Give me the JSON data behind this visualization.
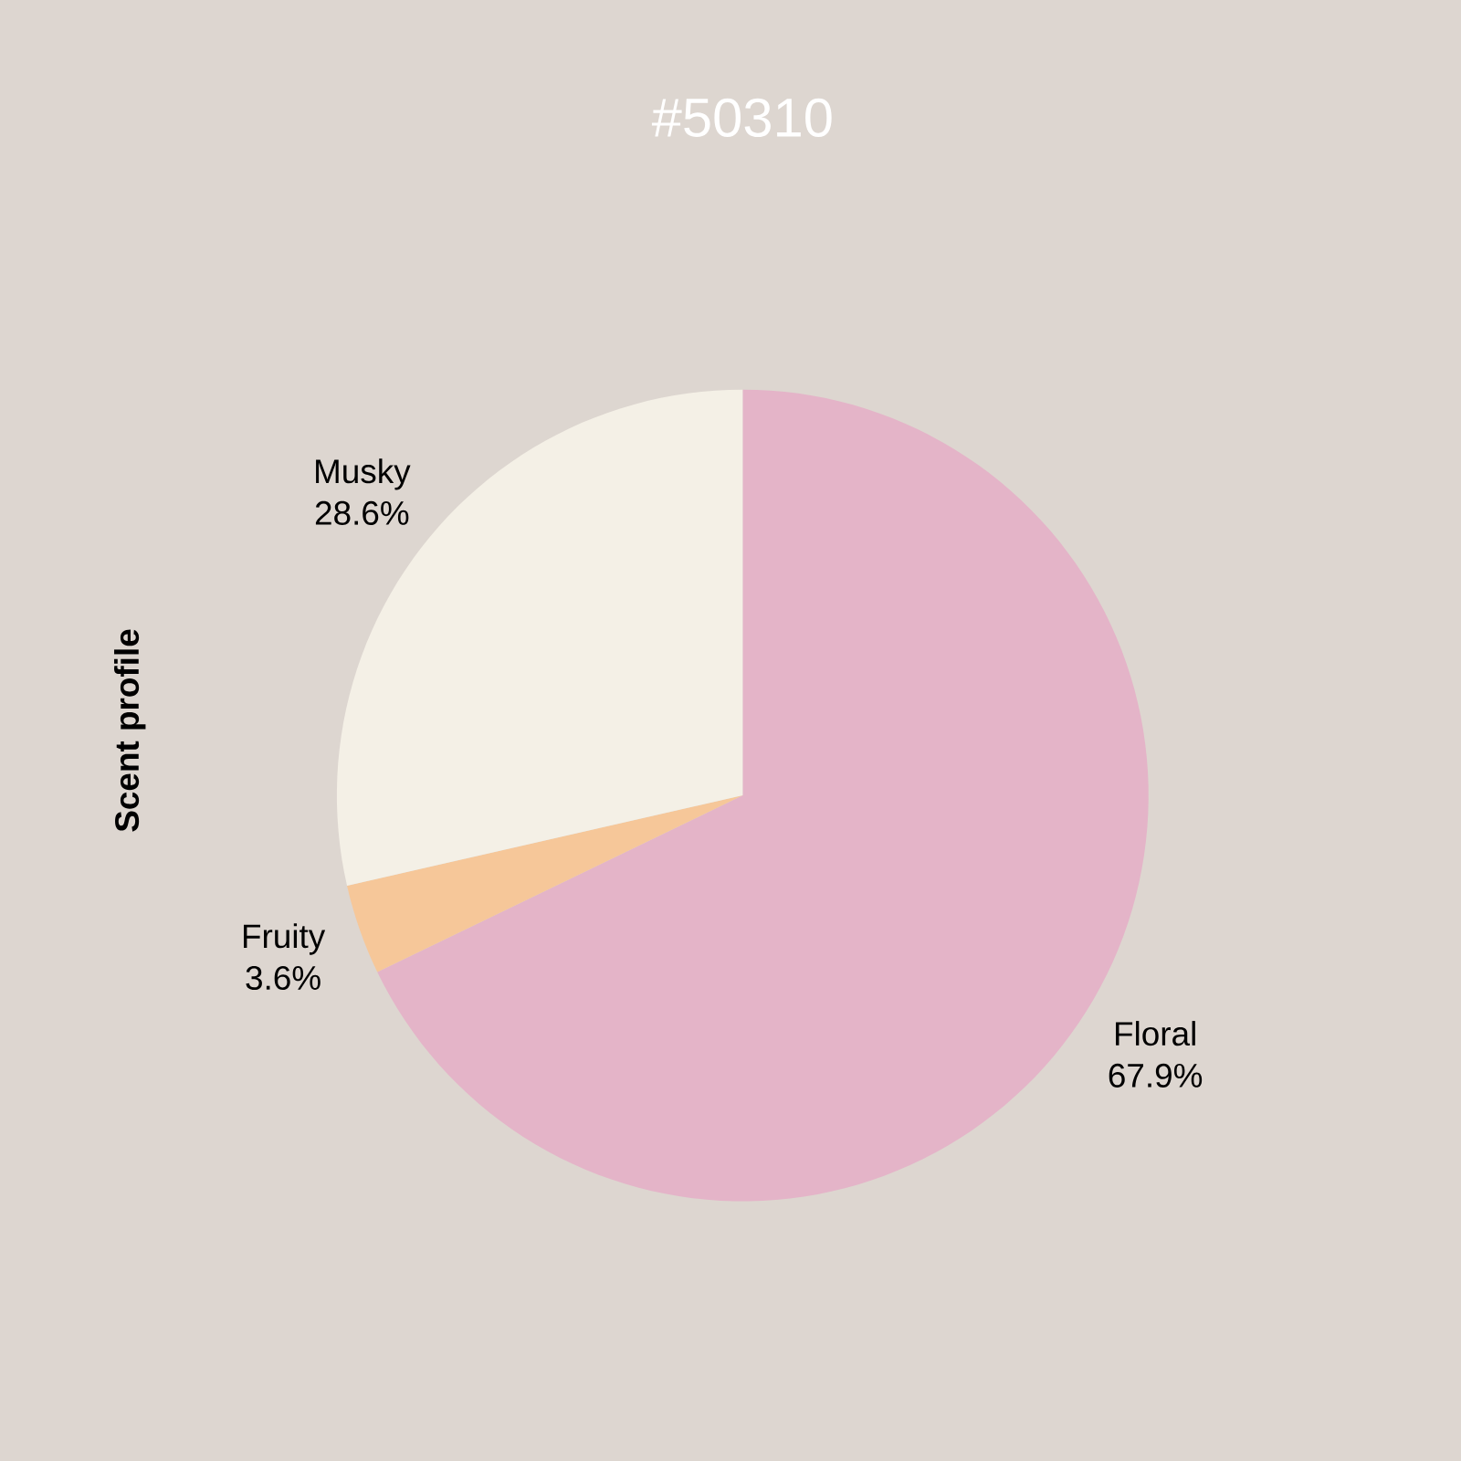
{
  "chart_data": {
    "type": "pie",
    "title": "#50310",
    "ylabel": "Scent profile",
    "categories": [
      "Floral",
      "Fruity",
      "Musky"
    ],
    "values": [
      67.9,
      3.6,
      28.6
    ],
    "colors": [
      "#e4b4c8",
      "#f6c799",
      "#f4f0e6"
    ],
    "value_labels": [
      "67.9%",
      "3.6%",
      "28.6%"
    ]
  }
}
